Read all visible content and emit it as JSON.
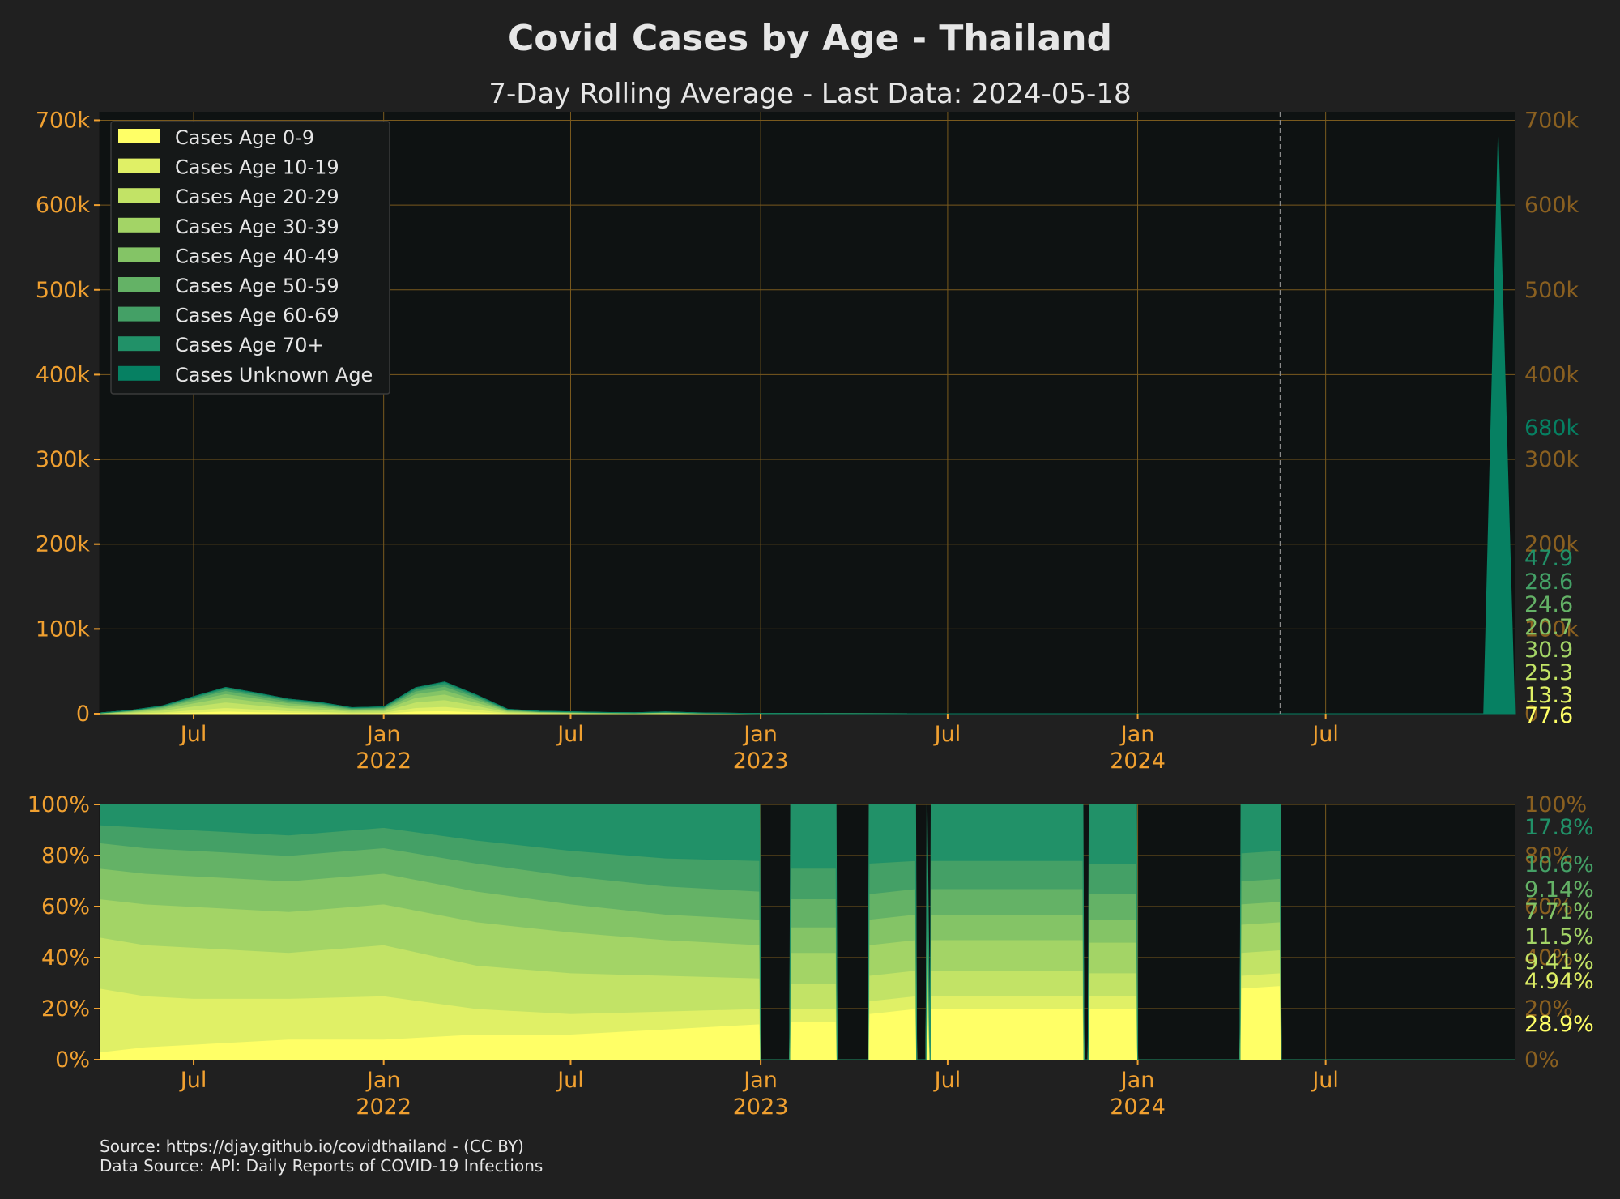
{
  "title": "Covid Cases by Age - Thailand",
  "subtitle": "7-Day Rolling Average - Last Data: 2024-05-18",
  "source_lines": [
    "Source: https://djay.github.io/covidthailand - (CC BY)",
    "Data Source: API: Daily Reports of COVID-19 Infections"
  ],
  "colors": {
    "background": "#202020",
    "plot_background": "#0e1212",
    "grid": "#7a5a1e",
    "tick": "#f0a030",
    "right_tick": "#8a6020",
    "text": "#e6e6e6"
  },
  "chart_data": [
    {
      "type": "area",
      "stacked": true,
      "title": "",
      "xlabel": "",
      "ylabel": "",
      "x_range": [
        "2021-04-01",
        "2024-12-31"
      ],
      "ylim": [
        0,
        710000
      ],
      "yticks": [
        0,
        100000,
        200000,
        300000,
        400000,
        500000,
        600000,
        700000
      ],
      "ytick_labels": [
        "0",
        "100k",
        "200k",
        "300k",
        "400k",
        "500k",
        "600k",
        "700k"
      ],
      "xticks": [
        {
          "date": "2021-07-01",
          "label": "Jul",
          "year": ""
        },
        {
          "date": "2022-01-01",
          "label": "Jan",
          "year": "2022"
        },
        {
          "date": "2022-07-01",
          "label": "Jul",
          "year": ""
        },
        {
          "date": "2023-01-01",
          "label": "Jan",
          "year": "2023"
        },
        {
          "date": "2023-07-01",
          "label": "Jul",
          "year": ""
        },
        {
          "date": "2024-01-01",
          "label": "Jan",
          "year": "2024"
        },
        {
          "date": "2024-07-01",
          "label": "Jul",
          "year": ""
        }
      ],
      "last_data_marker": "2024-05-18",
      "grid": true,
      "legend_position": "top-left",
      "x": [
        "2021-04-01",
        "2021-05-01",
        "2021-06-01",
        "2021-07-01",
        "2021-08-01",
        "2021-09-01",
        "2021-10-01",
        "2021-11-01",
        "2021-12-01",
        "2022-01-01",
        "2022-02-01",
        "2022-03-01",
        "2022-04-01",
        "2022-05-01",
        "2022-06-01",
        "2022-07-01",
        "2022-08-01",
        "2022-09-01",
        "2022-10-01",
        "2022-11-01",
        "2022-12-01",
        "2023-01-01",
        "2023-06-01",
        "2024-01-01",
        "2024-05-18",
        "2024-12-01",
        "2024-12-15",
        "2024-12-31"
      ],
      "series": [
        {
          "name": "Cases Age 0-9",
          "color": "#ffff66",
          "values": [
            60,
            300,
            700,
            1800,
            3000,
            2200,
            1400,
            1000,
            500,
            600,
            3000,
            3500,
            2000,
            500,
            300,
            200,
            150,
            100,
            200,
            100,
            60,
            20,
            0,
            0,
            0,
            0,
            0,
            0
          ],
          "right_label": "77.6"
        },
        {
          "name": "Cases Age 10-19",
          "color": "#e0f066",
          "values": [
            100,
            500,
            1200,
            2600,
            4200,
            3000,
            2000,
            1500,
            800,
            900,
            4200,
            5000,
            3000,
            700,
            400,
            300,
            200,
            150,
            250,
            120,
            80,
            30,
            0,
            0,
            0,
            0,
            0,
            0
          ],
          "right_label": "13.3"
        },
        {
          "name": "Cases Age 20-29",
          "color": "#c2e366",
          "values": [
            200,
            900,
            2200,
            4500,
            6500,
            5000,
            3500,
            2700,
            1500,
            1700,
            6500,
            8000,
            4500,
            1100,
            600,
            450,
            300,
            250,
            400,
            200,
            120,
            50,
            0,
            0,
            0,
            0,
            0,
            0
          ],
          "right_label": "25.3"
        },
        {
          "name": "Cases Age 30-39",
          "color": "#a3d466",
          "values": [
            180,
            800,
            1800,
            3800,
            5500,
            4300,
            3100,
            2400,
            1300,
            1500,
            5500,
            6500,
            3800,
            900,
            500,
            400,
            250,
            200,
            350,
            180,
            100,
            40,
            0,
            0,
            0,
            0,
            0,
            0
          ],
          "right_label": "30.9"
        },
        {
          "name": "Cases Age 40-49",
          "color": "#84c466",
          "values": [
            140,
            600,
            1400,
            3000,
            4500,
            3600,
            2600,
            2000,
            1100,
            1200,
            4300,
            5200,
            3100,
            700,
            400,
            300,
            200,
            150,
            300,
            150,
            80,
            30,
            0,
            0,
            0,
            0,
            0,
            0
          ],
          "right_label": "20.7"
        },
        {
          "name": "Cases Age 50-59",
          "color": "#64b266",
          "values": [
            100,
            450,
            1000,
            2200,
            3500,
            2900,
            2100,
            1700,
            900,
            1000,
            3300,
            4200,
            2500,
            600,
            350,
            250,
            180,
            130,
            250,
            120,
            70,
            30,
            0,
            0,
            0,
            0,
            0,
            0
          ],
          "right_label": "24.6"
        },
        {
          "name": "Cases Age 60-69",
          "color": "#44a066",
          "values": [
            60,
            250,
            600,
            1400,
            2300,
            2000,
            1500,
            1200,
            650,
            700,
            2300,
            3000,
            1800,
            450,
            250,
            200,
            140,
            100,
            200,
            100,
            60,
            20,
            0,
            0,
            0,
            0,
            0,
            0
          ],
          "right_label": "28.6"
        },
        {
          "name": "Cases Age 70+",
          "color": "#219168",
          "values": [
            40,
            150,
            400,
            900,
            1500,
            1300,
            1000,
            800,
            450,
            500,
            1600,
            2100,
            1300,
            350,
            200,
            150,
            110,
            80,
            160,
            80,
            50,
            20,
            0,
            0,
            0,
            0,
            0,
            0
          ],
          "right_label": "47.9"
        },
        {
          "name": "Cases Unknown Age",
          "color": "#068062",
          "values": [
            0,
            0,
            0,
            0,
            0,
            0,
            0,
            0,
            0,
            0,
            0,
            0,
            0,
            0,
            0,
            0,
            0,
            0,
            0,
            0,
            0,
            0,
            0,
            0,
            0,
            0,
            680000,
            0
          ],
          "right_label": "680k"
        }
      ]
    },
    {
      "type": "area",
      "stacked": true,
      "normalized": true,
      "title": "",
      "xlabel": "",
      "ylabel": "",
      "x_range": [
        "2021-04-01",
        "2024-12-31"
      ],
      "ylim": [
        0,
        100
      ],
      "yticks": [
        0,
        20,
        40,
        60,
        80,
        100
      ],
      "ytick_labels": [
        "0%",
        "20%",
        "40%",
        "60%",
        "80%",
        "100%"
      ],
      "xticks": [
        {
          "date": "2021-07-01",
          "label": "Jul",
          "year": ""
        },
        {
          "date": "2022-01-01",
          "label": "Jan",
          "year": "2022"
        },
        {
          "date": "2022-07-01",
          "label": "Jul",
          "year": ""
        },
        {
          "date": "2023-01-01",
          "label": "Jan",
          "year": "2023"
        },
        {
          "date": "2023-07-01",
          "label": "Jul",
          "year": ""
        },
        {
          "date": "2024-01-01",
          "label": "Jan",
          "year": "2024"
        },
        {
          "date": "2024-07-01",
          "label": "Jul",
          "year": ""
        }
      ],
      "grid": true,
      "right_labels": [
        {
          "text": "28.9%",
          "color": "#ffff66"
        },
        {
          "text": "4.94%",
          "color": "#e0f066"
        },
        {
          "text": "9.41%",
          "color": "#c2e366"
        },
        {
          "text": "11.5%",
          "color": "#a3d466"
        },
        {
          "text": "7.71%",
          "color": "#84c466"
        },
        {
          "text": "9.14%",
          "color": "#64b266"
        },
        {
          "text": "10.6%",
          "color": "#44a066"
        },
        {
          "text": "17.8%",
          "color": "#219168"
        }
      ],
      "x": [
        "2021-04-01",
        "2021-05-15",
        "2021-07-01",
        "2021-10-01",
        "2022-01-01",
        "2022-04-01",
        "2022-07-01",
        "2022-10-01",
        "2022-12-31",
        "2023-01-01",
        "2023-01-29",
        "2023-01-30",
        "2023-03-15",
        "2023-03-16",
        "2023-04-15",
        "2023-04-16",
        "2023-05-31",
        "2023-06-01",
        "2023-06-10",
        "2023-06-11",
        "2023-06-14",
        "2023-06-15",
        "2023-11-09",
        "2023-11-10",
        "2023-11-14",
        "2023-11-15",
        "2023-12-31",
        "2024-01-01",
        "2024-04-09",
        "2024-04-10",
        "2024-05-18",
        "2024-05-19",
        "2024-12-31"
      ],
      "series": [
        {
          "name": "Cases Age 0-9",
          "values": [
            3,
            5,
            6,
            8,
            8,
            10,
            10,
            12,
            14,
            0,
            0,
            15,
            15,
            0,
            0,
            18,
            20,
            0,
            0,
            20,
            0,
            20,
            20,
            0,
            0,
            20,
            20,
            0,
            0,
            28,
            29,
            0,
            0
          ]
        },
        {
          "name": "Cases Age 10-19",
          "values": [
            25,
            20,
            18,
            16,
            17,
            10,
            8,
            7,
            6,
            0,
            0,
            5,
            5,
            0,
            0,
            5,
            5,
            0,
            0,
            5,
            0,
            5,
            5,
            0,
            0,
            5,
            5,
            0,
            0,
            5,
            5,
            0,
            0
          ]
        },
        {
          "name": "Cases Age 20-29",
          "values": [
            20,
            20,
            20,
            18,
            20,
            17,
            16,
            14,
            12,
            0,
            0,
            10,
            10,
            0,
            0,
            10,
            10,
            0,
            0,
            10,
            0,
            10,
            10,
            0,
            0,
            9,
            9,
            0,
            0,
            9,
            9,
            0,
            0
          ]
        },
        {
          "name": "Cases Age 30-39",
          "values": [
            15,
            16,
            16,
            16,
            16,
            17,
            16,
            14,
            13,
            0,
            0,
            12,
            12,
            0,
            0,
            12,
            12,
            0,
            0,
            12,
            0,
            12,
            12,
            0,
            0,
            12,
            12,
            0,
            0,
            11,
            11,
            0,
            0
          ]
        },
        {
          "name": "Cases Age 40-49",
          "values": [
            12,
            12,
            12,
            12,
            12,
            12,
            11,
            10,
            10,
            0,
            0,
            10,
            10,
            0,
            0,
            10,
            10,
            0,
            0,
            10,
            0,
            10,
            10,
            0,
            0,
            9,
            9,
            0,
            0,
            8,
            8,
            0,
            0
          ]
        },
        {
          "name": "Cases Age 50-59",
          "values": [
            10,
            10,
            10,
            10,
            10,
            11,
            11,
            11,
            11,
            0,
            0,
            11,
            11,
            0,
            0,
            10,
            10,
            0,
            0,
            10,
            0,
            10,
            10,
            0,
            0,
            10,
            10,
            0,
            0,
            9,
            9,
            0,
            0
          ]
        },
        {
          "name": "Cases Age 60-69",
          "values": [
            7,
            8,
            8,
            8,
            8,
            9,
            10,
            11,
            12,
            0,
            0,
            12,
            12,
            0,
            0,
            12,
            11,
            0,
            0,
            11,
            0,
            11,
            11,
            0,
            0,
            12,
            12,
            0,
            0,
            11,
            11,
            0,
            0
          ]
        },
        {
          "name": "Cases Age 70+",
          "values": [
            8,
            9,
            10,
            12,
            9,
            14,
            18,
            21,
            22,
            0,
            0,
            25,
            25,
            0,
            0,
            23,
            22,
            0,
            0,
            22,
            0,
            22,
            22,
            0,
            0,
            23,
            23,
            0,
            0,
            19,
            18,
            0,
            0
          ]
        }
      ]
    }
  ],
  "stack_colors": [
    "#ffff66",
    "#e0f066",
    "#c2e366",
    "#a3d466",
    "#84c466",
    "#64b266",
    "#44a066",
    "#219168",
    "#068062"
  ]
}
